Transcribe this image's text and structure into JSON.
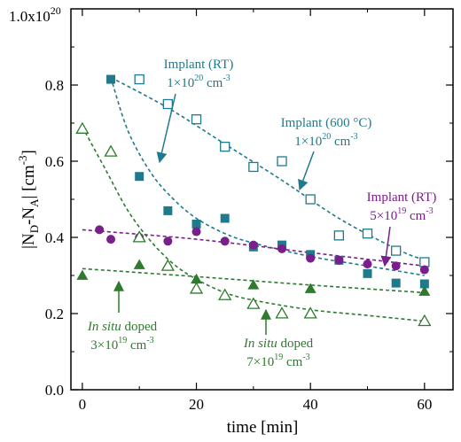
{
  "chart_data": {
    "type": "scatter",
    "title": "",
    "xlabel": "time [min]",
    "ylabel": "|N_D-N_A| [cm^-3]",
    "xlim": [
      -2,
      65
    ],
    "ylim": [
      0.0,
      1.0
    ],
    "y_unit_scale_label": "1.0x10^20",
    "x_ticks": [
      0,
      20,
      40,
      60
    ],
    "y_ticks": [
      0.0,
      0.2,
      0.4,
      0.6,
      0.8
    ],
    "y_tick_labels": [
      "0.0",
      "0.2",
      "0.4",
      "0.6",
      "0.8"
    ],
    "grid": false,
    "legend": "none",
    "series": [
      {
        "color": "#1e7a8c",
        "marker": "square-open",
        "x": [
          10,
          15,
          20,
          25,
          30,
          35,
          40,
          45,
          50,
          55,
          60
        ],
        "y": [
          0.815,
          0.75,
          0.71,
          0.638,
          0.585,
          0.6,
          0.5,
          0.405,
          0.41,
          0.365,
          0.335
        ],
        "fit": {
          "x": [
            5,
            15,
            25,
            35,
            45,
            55,
            60
          ],
          "y": [
            0.82,
            0.74,
            0.645,
            0.55,
            0.45,
            0.37,
            0.34
          ]
        }
      },
      {
        "color": "#1e7a8c",
        "marker": "square-filled",
        "x": [
          5,
          10,
          15,
          20,
          25,
          30,
          35,
          40,
          45,
          50,
          55,
          60
        ],
        "y": [
          0.815,
          0.56,
          0.47,
          0.435,
          0.45,
          0.375,
          0.38,
          0.355,
          0.34,
          0.305,
          0.28,
          0.278
        ],
        "fit": {
          "x": [
            5,
            8,
            12,
            16,
            20,
            25,
            30,
            40,
            50,
            60
          ],
          "y": [
            0.82,
            0.68,
            0.57,
            0.5,
            0.45,
            0.41,
            0.385,
            0.35,
            0.325,
            0.3
          ]
        }
      },
      {
        "color": "#7a1e8c",
        "marker": "circle-filled",
        "x": [
          3,
          5,
          10,
          15,
          20,
          25,
          30,
          35,
          40,
          45,
          50,
          55,
          60
        ],
        "y": [
          0.42,
          0.395,
          0.4,
          0.39,
          0.415,
          0.39,
          0.38,
          0.37,
          0.345,
          0.34,
          0.33,
          0.325,
          0.315
        ],
        "fit": {
          "x": [
            0,
            20,
            40,
            60
          ],
          "y": [
            0.42,
            0.395,
            0.36,
            0.325
          ]
        }
      },
      {
        "color": "#2e7a2e",
        "marker": "triangle-filled",
        "x": [
          0,
          10,
          20,
          30,
          40,
          60
        ],
        "y": [
          0.3,
          0.328,
          0.29,
          0.275,
          0.265,
          0.258
        ],
        "fit": {
          "x": [
            0,
            20,
            40,
            60
          ],
          "y": [
            0.318,
            0.297,
            0.275,
            0.255
          ]
        }
      },
      {
        "color": "#2e7a2e",
        "marker": "triangle-open",
        "x": [
          0,
          5,
          10,
          15,
          20,
          25,
          30,
          35,
          40,
          60
        ],
        "y": [
          0.685,
          0.625,
          0.4,
          0.325,
          0.265,
          0.248,
          0.225,
          0.2,
          0.2,
          0.18
        ],
        "fit": {
          "x": [
            0,
            4,
            8,
            12,
            16,
            20,
            25,
            30,
            40,
            50,
            60
          ],
          "y": [
            0.69,
            0.58,
            0.47,
            0.39,
            0.33,
            0.29,
            0.255,
            0.235,
            0.21,
            0.195,
            0.18
          ]
        }
      }
    ],
    "annotations": [
      {
        "id": "implant-rt-1e20",
        "color": "#1e7a8c",
        "lines": [
          "Implant (RT)",
          "1×10^20 cm^-3"
        ]
      },
      {
        "id": "implant-600-1e20",
        "color": "#1e7a8c",
        "lines": [
          "Implant (600 °C)",
          "1×10^20 cm^-3"
        ]
      },
      {
        "id": "implant-rt-5e19",
        "color": "#7a1e8c",
        "lines": [
          "Implant (RT)",
          "5×10^19 cm^-3"
        ]
      },
      {
        "id": "insitu-3e19",
        "color": "#2e7a2e",
        "lines": [
          "In situ doped",
          "3×10^19 cm^-3"
        ]
      },
      {
        "id": "insitu-7e19",
        "color": "#2e7a2e",
        "lines": [
          "In situ doped",
          "7×10^19 cm^-3"
        ]
      }
    ]
  }
}
